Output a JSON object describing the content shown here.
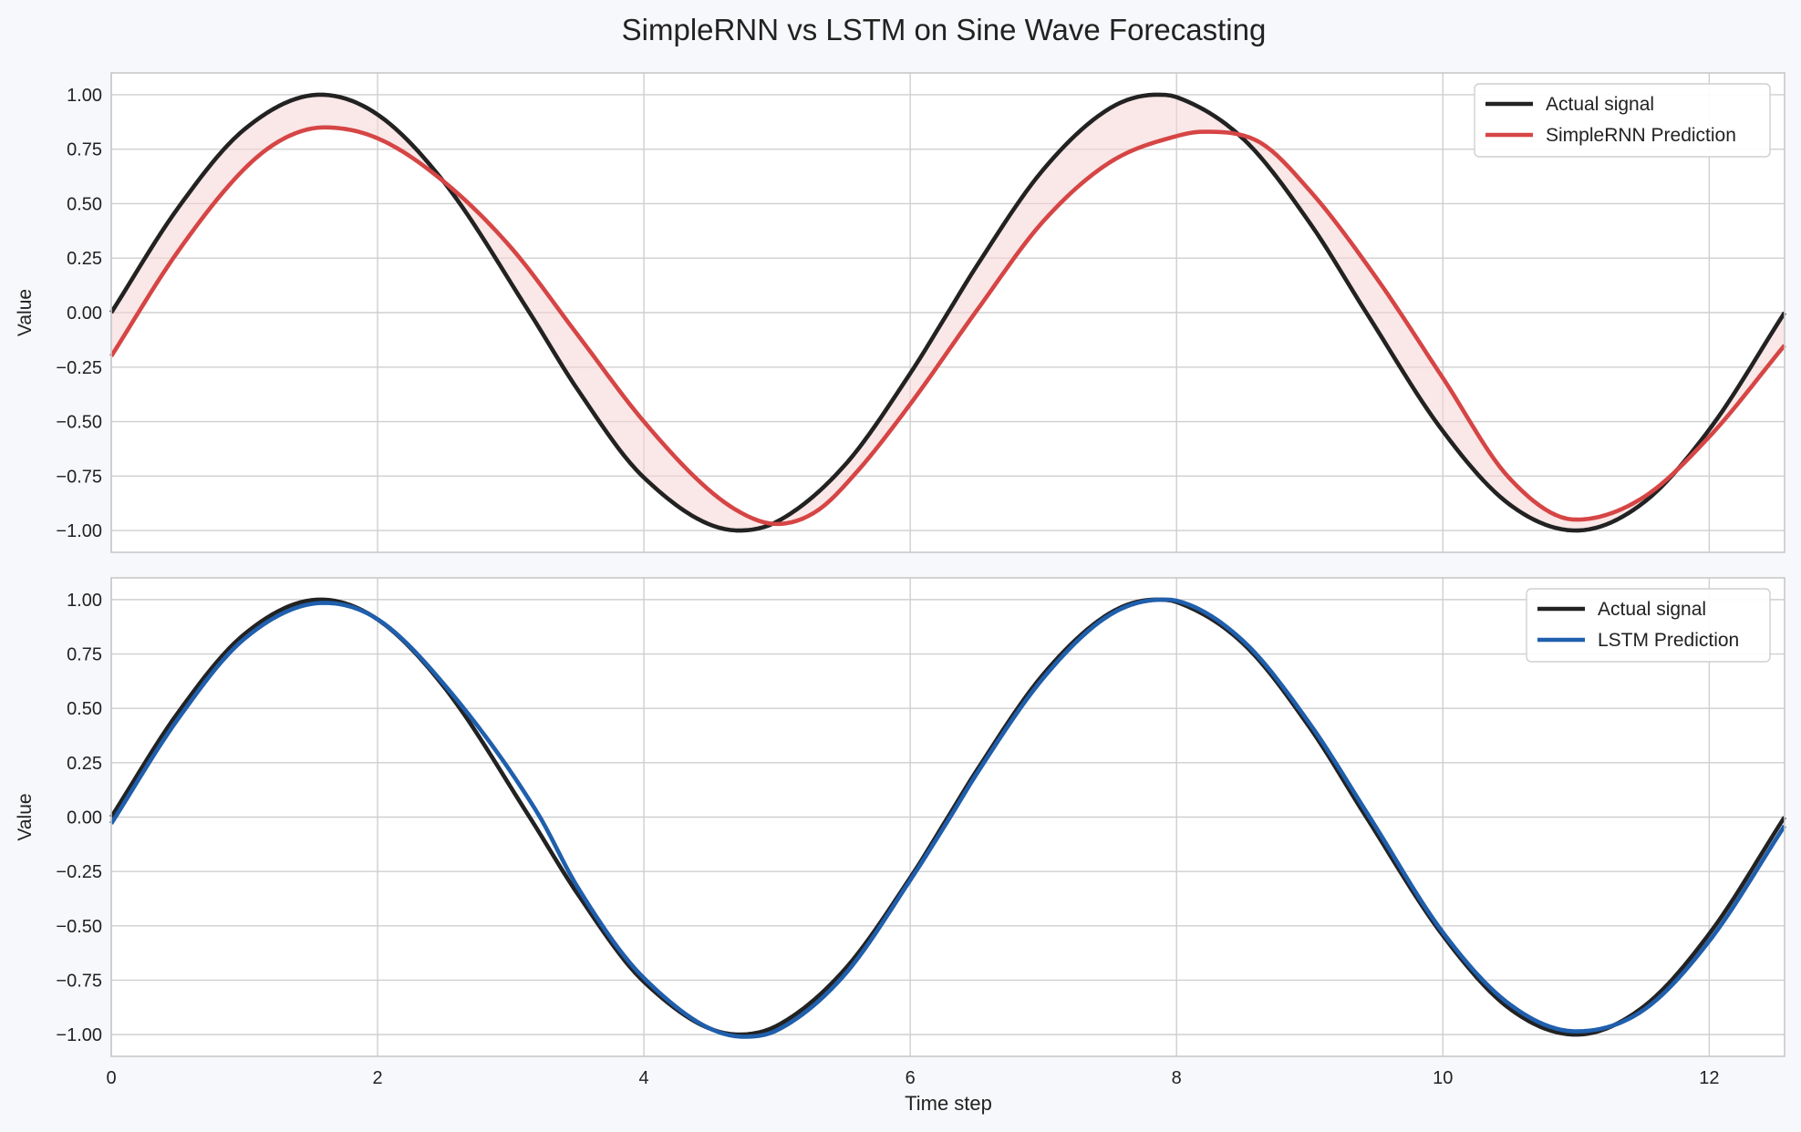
{
  "chart_data": {
    "type": "line",
    "title": "SimpleRNN vs LSTM on Sine Wave Forecasting",
    "xlabel": "Time step",
    "xlim": [
      0,
      12.566
    ],
    "xticks": [
      0,
      2,
      4,
      6,
      8,
      10,
      12
    ],
    "xtick_labels": [
      "0",
      "2",
      "4",
      "6",
      "8",
      "10",
      "12"
    ],
    "panels": [
      {
        "id": "top",
        "ylabel": "Value",
        "ylim": [
          -1.1,
          1.1
        ],
        "yticks": [
          1.0,
          0.75,
          0.5,
          0.25,
          0.0,
          -0.25,
          -0.5,
          -0.75,
          -1.0
        ],
        "ytick_labels": [
          "1.00",
          "0.75",
          "0.50",
          "0.25",
          "0.00",
          "−0.25",
          "−0.50",
          "−0.75",
          "−1.00"
        ],
        "grid": true,
        "legend_position": "top-right",
        "fill_between": {
          "series": [
            0,
            1
          ],
          "color": "#f6d3d3"
        },
        "series": [
          {
            "name": "Actual signal",
            "color": "#222222",
            "x": [
              0,
              0.5,
              1.0,
              1.5708,
              2.0,
              2.5,
              3.1416,
              3.5,
              4.0,
              4.7124,
              5.0,
              5.5,
              6.0,
              6.2832,
              6.5,
              7.0,
              7.5,
              7.854,
              8.0,
              8.5,
              9.0,
              9.4248,
              10.0,
              10.5,
              11.0,
              11.5,
              12.0,
              12.566
            ],
            "values": [
              0.0,
              0.479,
              0.841,
              1.0,
              0.909,
              0.598,
              0.0,
              -0.351,
              -0.757,
              -1.0,
              -0.959,
              -0.706,
              -0.279,
              0.0,
              0.215,
              0.657,
              0.938,
              1.0,
              0.989,
              0.798,
              0.412,
              0.0,
              -0.544,
              -0.88,
              -1.0,
              -0.875,
              -0.537,
              0.0
            ]
          },
          {
            "name": "SimpleRNN Prediction",
            "color": "#d64545",
            "x": [
              0,
              0.5,
              1.0,
              1.3,
              1.6,
              2.0,
              2.5,
              3.0,
              3.5,
              4.0,
              4.5,
              4.8,
              5.0,
              5.3,
              5.6,
              6.0,
              6.5,
              7.0,
              7.5,
              8.0,
              8.2,
              8.6,
              9.0,
              9.5,
              10.0,
              10.5,
              11.0,
              11.5,
              12.0,
              12.566
            ],
            "values": [
              -0.2,
              0.28,
              0.66,
              0.8,
              0.85,
              0.8,
              0.6,
              0.3,
              -0.1,
              -0.5,
              -0.82,
              -0.94,
              -0.97,
              -0.91,
              -0.73,
              -0.42,
              0.01,
              0.42,
              0.69,
              0.81,
              0.83,
              0.79,
              0.56,
              0.16,
              -0.3,
              -0.76,
              -0.95,
              -0.85,
              -0.57,
              -0.15
            ]
          }
        ]
      },
      {
        "id": "bottom",
        "ylabel": "Value",
        "ylim": [
          -1.1,
          1.1
        ],
        "yticks": [
          1.0,
          0.75,
          0.5,
          0.25,
          0.0,
          -0.25,
          -0.5,
          -0.75,
          -1.0
        ],
        "ytick_labels": [
          "1.00",
          "0.75",
          "0.50",
          "0.25",
          "0.00",
          "−0.25",
          "−0.50",
          "−0.75",
          "−1.00"
        ],
        "grid": true,
        "legend_position": "top-right",
        "series": [
          {
            "name": "Actual signal",
            "color": "#222222",
            "x": [
              0,
              0.5,
              1.0,
              1.5708,
              2.0,
              2.5,
              3.1416,
              3.5,
              4.0,
              4.7124,
              5.0,
              5.5,
              6.0,
              6.2832,
              6.5,
              7.0,
              7.5,
              7.854,
              8.0,
              8.5,
              9.0,
              9.4248,
              10.0,
              10.5,
              11.0,
              11.5,
              12.0,
              12.566
            ],
            "values": [
              0.0,
              0.479,
              0.841,
              1.0,
              0.909,
              0.598,
              0.0,
              -0.351,
              -0.757,
              -1.0,
              -0.959,
              -0.706,
              -0.279,
              0.0,
              0.215,
              0.657,
              0.938,
              1.0,
              0.989,
              0.798,
              0.412,
              0.0,
              -0.544,
              -0.88,
              -1.0,
              -0.875,
              -0.537,
              0.0
            ]
          },
          {
            "name": "LSTM Prediction",
            "color": "#1f5fad",
            "x": [
              0,
              0.5,
              1.0,
              1.6,
              2.0,
              2.5,
              3.2,
              3.5,
              4.0,
              4.75,
              5.0,
              5.5,
              6.0,
              6.3,
              6.5,
              7.0,
              7.5,
              7.9,
              8.0,
              8.5,
              9.0,
              9.45,
              10.0,
              10.5,
              11.0,
              11.5,
              12.0,
              12.566
            ],
            "values": [
              -0.03,
              0.45,
              0.82,
              0.985,
              0.91,
              0.61,
              0.02,
              -0.32,
              -0.74,
              -1.01,
              -0.98,
              -0.73,
              -0.29,
              0.0,
              0.2,
              0.64,
              0.93,
              1.0,
              0.995,
              0.81,
              0.43,
              0.0,
              -0.53,
              -0.86,
              -0.985,
              -0.89,
              -0.57,
              -0.04
            ]
          }
        ]
      }
    ]
  }
}
